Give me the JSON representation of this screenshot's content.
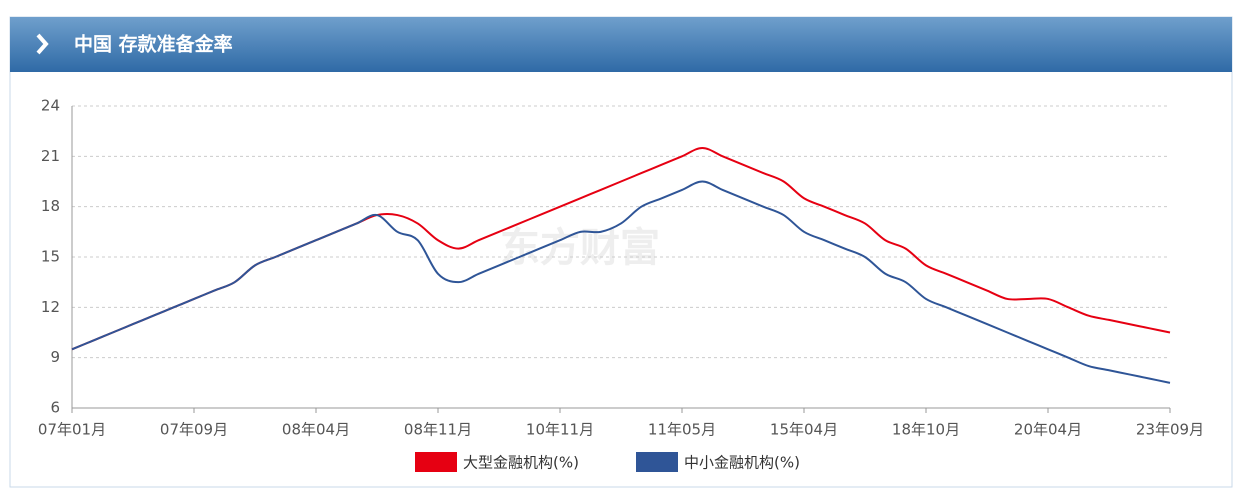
{
  "chart_data": {
    "type": "line",
    "title": "中国 存款准备金率",
    "watermark": "东方财富",
    "categories": [
      "07年01月",
      null,
      null,
      null,
      null,
      null,
      "07年09月",
      null,
      null,
      null,
      null,
      null,
      "08年04月",
      null,
      null,
      null,
      null,
      null,
      "08年11月",
      null,
      null,
      null,
      null,
      null,
      "10年11月",
      null,
      null,
      null,
      null,
      null,
      "11年05月",
      null,
      null,
      null,
      null,
      null,
      "15年04月",
      null,
      null,
      null,
      null,
      null,
      "18年10月",
      null,
      null,
      null,
      null,
      null,
      "20年04月",
      null,
      null,
      null,
      null,
      null,
      "23年09月"
    ],
    "series": [
      {
        "name": "大型金融机构(%)",
        "color": "#e60012",
        "values": [
          9.5,
          10,
          10.5,
          11,
          11.5,
          12,
          12.5,
          13,
          13.5,
          14.5,
          15,
          15.5,
          16,
          16.5,
          17,
          17.5,
          17.5,
          17,
          16,
          15.5,
          16,
          16.5,
          17,
          17.5,
          18,
          18.5,
          19,
          19.5,
          20,
          20.5,
          21,
          21.5,
          21,
          20.5,
          20,
          19.5,
          18.5,
          18,
          17.5,
          17,
          16,
          15.5,
          14.5,
          14,
          13.5,
          13,
          12.5,
          12.5,
          12.5,
          12,
          11.5,
          11.25,
          11,
          10.75,
          10.5
        ]
      },
      {
        "name": "中小金融机构(%)",
        "color": "#2f5597",
        "values": [
          9.5,
          10,
          10.5,
          11,
          11.5,
          12,
          12.5,
          13,
          13.5,
          14.5,
          15,
          15.5,
          16,
          16.5,
          17,
          17.5,
          16.5,
          16,
          14,
          13.5,
          14,
          14.5,
          15,
          15.5,
          16,
          16.5,
          16.5,
          17,
          18,
          18.5,
          19,
          19.5,
          19,
          18.5,
          18,
          17.5,
          16.5,
          16,
          15.5,
          15,
          14,
          13.5,
          12.5,
          12,
          11.5,
          11,
          10.5,
          10,
          9.5,
          9,
          8.5,
          8.25,
          8,
          7.75,
          7.5
        ]
      }
    ],
    "ylim": [
      6,
      24
    ],
    "yticks": [
      6,
      9,
      12,
      15,
      18,
      21,
      24
    ],
    "grid": true
  }
}
